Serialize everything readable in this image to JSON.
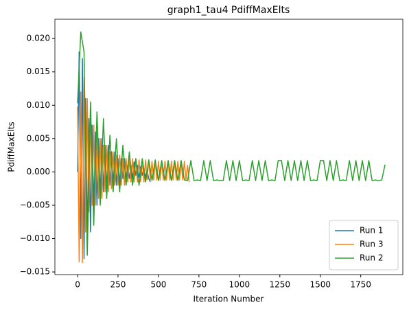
{
  "chart_data": {
    "type": "line",
    "title": "graph1_tau4 PdiffMaxElts",
    "xlabel": "Iteration Number",
    "ylabel": "PdiffMaxElts",
    "xlim": [
      -140,
      2010
    ],
    "ylim": [
      -0.0154,
      0.0229
    ],
    "xticks": [
      0,
      250,
      500,
      750,
      1000,
      1250,
      1500,
      1750
    ],
    "yticks": [
      {
        "value": -0.015,
        "label": "−0.015"
      },
      {
        "value": -0.01,
        "label": "−0.010"
      },
      {
        "value": -0.005,
        "label": "−0.005"
      },
      {
        "value": 0,
        "label": "0.000"
      },
      {
        "value": 0.005,
        "label": "0.005"
      },
      {
        "value": 0.01,
        "label": "0.010"
      },
      {
        "value": 0.015,
        "label": "0.015"
      },
      {
        "value": 0.02,
        "label": "0.020"
      }
    ],
    "legend": "lower right",
    "grid": false,
    "series": [
      {
        "name": "Run 1",
        "color": "#1f77b4",
        "x": [
          0,
          10,
          20,
          30,
          40,
          50,
          60,
          70,
          80,
          90,
          100,
          110,
          120,
          130,
          140,
          150,
          160,
          170,
          180,
          190,
          200,
          210,
          220,
          230,
          240,
          250,
          260,
          270,
          280,
          290,
          300,
          310,
          320,
          330,
          340,
          350,
          360,
          370,
          380,
          390,
          400,
          410,
          420,
          430,
          440,
          450
        ],
        "values": [
          0.0,
          0.018,
          -0.01,
          0.017,
          -0.013,
          0.011,
          -0.011,
          0.008,
          -0.009,
          0.007,
          -0.006,
          0.006,
          -0.005,
          0.005,
          -0.004,
          0.005,
          -0.003,
          0.004,
          -0.003,
          0.004,
          -0.002,
          0.003,
          -0.002,
          0.003,
          -0.002,
          0.002,
          -0.002,
          0.002,
          -0.001,
          0.002,
          -0.001,
          0.001,
          -0.001,
          0.001,
          -0.001,
          0.0015,
          -0.0005,
          0.001,
          -0.0008,
          0.0008,
          -0.0005,
          0.0005,
          -0.0008,
          0.0002,
          -0.001,
          -0.0015
        ]
      },
      {
        "name": "Run 3",
        "color": "#ff7f0e",
        "x": [
          0,
          10,
          20,
          30,
          40,
          50,
          60,
          70,
          80,
          90,
          100,
          110,
          120,
          130,
          140,
          150,
          160,
          170,
          180,
          190,
          200,
          210,
          220,
          230,
          240,
          250,
          260,
          270,
          280,
          290,
          300,
          310,
          320,
          330,
          340,
          350,
          360,
          370,
          380,
          390,
          400,
          410,
          420,
          430,
          440,
          450,
          460,
          470,
          480,
          490,
          500,
          510,
          520,
          530,
          540,
          550,
          560,
          570,
          580,
          590,
          600,
          610,
          620,
          630,
          640,
          650,
          660,
          670,
          680,
          690
        ],
        "values": [
          0.0098,
          -0.0135,
          0.012,
          -0.0136,
          0.0142,
          -0.009,
          0.011,
          -0.006,
          0.009,
          -0.005,
          0.007,
          -0.005,
          0.006,
          -0.004,
          0.005,
          -0.004,
          0.004,
          -0.003,
          0.004,
          -0.003,
          0.003,
          -0.0025,
          0.003,
          -0.002,
          0.0025,
          -0.002,
          0.0025,
          -0.002,
          0.002,
          -0.002,
          0.002,
          -0.0015,
          0.002,
          -0.0015,
          0.002,
          -0.0015,
          0.002,
          -0.0015,
          0.0018,
          -0.0015,
          0.0018,
          -0.0015,
          0.0018,
          -0.0012,
          0.0018,
          -0.0012,
          0.0016,
          -0.0012,
          0.0016,
          -0.0012,
          0.0016,
          -0.0012,
          0.0016,
          -0.0012,
          0.0016,
          -0.0012,
          0.0016,
          -0.0012,
          0.0016,
          -0.0012,
          0.0016,
          -0.0012,
          0.0016,
          -0.0012,
          0.0016,
          -0.0012,
          0.0016,
          -0.0012,
          0.001,
          -0.0015
        ]
      },
      {
        "name": "Run 2",
        "color": "#2ca02c",
        "x": [
          0,
          20,
          40,
          60,
          80,
          100,
          120,
          140,
          160,
          180,
          200,
          220,
          240,
          260,
          280,
          300,
          320,
          340,
          360,
          380,
          400,
          420,
          440,
          460,
          480,
          500,
          520,
          540,
          560,
          580,
          600,
          620,
          640,
          660,
          680,
          700,
          720,
          740,
          760,
          780,
          800,
          820,
          840,
          860,
          880,
          900,
          920,
          940,
          960,
          980,
          1000,
          1020,
          1040,
          1060,
          1080,
          1100,
          1120,
          1140,
          1160,
          1180,
          1200,
          1220,
          1240,
          1260,
          1280,
          1300,
          1320,
          1340,
          1360,
          1380,
          1400,
          1420,
          1440,
          1460,
          1480,
          1500,
          1520,
          1540,
          1560,
          1580,
          1600,
          1620,
          1640,
          1660,
          1680,
          1700,
          1720,
          1740,
          1760,
          1780,
          1800,
          1820,
          1840,
          1860,
          1880,
          1900
        ],
        "values": [
          0.0103,
          0.021,
          0.018,
          -0.0125,
          0.0105,
          -0.008,
          0.009,
          -0.005,
          0.008,
          -0.004,
          0.0055,
          -0.003,
          0.005,
          -0.003,
          0.004,
          -0.002,
          0.003,
          -0.002,
          0.002,
          -0.002,
          0.002,
          -0.0015,
          0.0018,
          -0.0013,
          0.0018,
          -0.0013,
          0.0017,
          -0.0013,
          0.0017,
          -0.0013,
          0.0017,
          -0.0013,
          0.0017,
          -0.0012,
          -0.0013,
          0.0017,
          -0.0013,
          -0.0012,
          -0.0013,
          0.0017,
          -0.0013,
          0.0017,
          -0.0013,
          -0.0012,
          -0.0013,
          -0.0013,
          0.0017,
          -0.0013,
          0.0017,
          -0.0013,
          0.0017,
          -0.0013,
          -0.0012,
          -0.0013,
          0.0017,
          -0.0013,
          0.0017,
          -0.0013,
          0.0017,
          -0.0013,
          -0.0012,
          -0.0013,
          0.0017,
          0.0017,
          -0.0013,
          0.0017,
          -0.0013,
          0.0017,
          -0.0013,
          0.0017,
          -0.0013,
          0.0017,
          -0.0013,
          -0.0012,
          -0.0013,
          0.0017,
          0.0017,
          -0.0013,
          0.0017,
          -0.0013,
          0.0017,
          -0.0013,
          -0.0012,
          -0.0013,
          0.0017,
          -0.0013,
          0.0017,
          -0.0013,
          0.0017,
          -0.0013,
          0.0017,
          -0.0013,
          -0.0012,
          -0.0013,
          -0.0012,
          0.0011
        ]
      }
    ]
  }
}
